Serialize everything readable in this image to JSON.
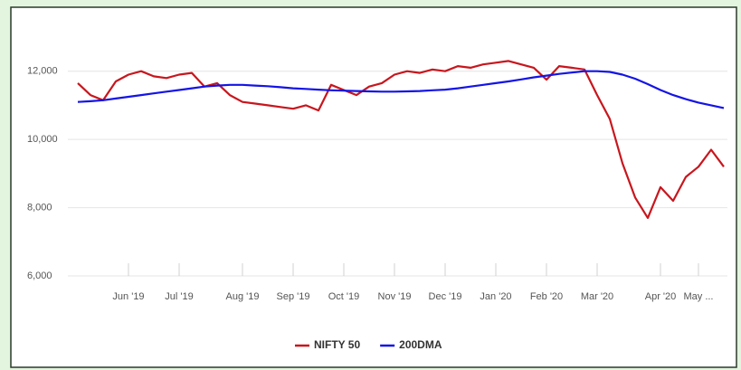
{
  "chart_data": {
    "type": "line",
    "categories": [
      null,
      null,
      null,
      null,
      "Jun '19",
      null,
      null,
      null,
      "Jul '19",
      null,
      null,
      null,
      null,
      "Aug '19",
      null,
      null,
      null,
      "Sep '19",
      null,
      null,
      null,
      "Oct '19",
      null,
      null,
      null,
      "Nov '19",
      null,
      null,
      null,
      "Dec '19",
      null,
      null,
      null,
      "Jan '20",
      null,
      null,
      null,
      "Feb '20",
      null,
      null,
      null,
      "Mar '20",
      null,
      null,
      null,
      null,
      "Apr '20",
      null,
      null,
      "May ...",
      null,
      null
    ],
    "series": [
      {
        "name": "NIFTY 50",
        "color": "#c8161d",
        "values": [
          11650,
          11300,
          11150,
          11700,
          11900,
          12000,
          11850,
          11800,
          11900,
          11950,
          11550,
          11650,
          11300,
          11100,
          11050,
          11000,
          10950,
          10900,
          11000,
          10850,
          11600,
          11450,
          11300,
          11550,
          11650,
          11900,
          12000,
          11950,
          12050,
          12000,
          12150,
          12100,
          12200,
          12250,
          12300,
          12200,
          12100,
          11750,
          12150,
          12100,
          12050,
          11300,
          10600,
          9300,
          8300,
          7700,
          8600,
          8200,
          8900,
          9200,
          9700,
          9200
        ]
      },
      {
        "name": "200DMA",
        "color": "#1414e6",
        "values": [
          11100,
          11120,
          11150,
          11200,
          11250,
          11300,
          11350,
          11400,
          11450,
          11500,
          11550,
          11580,
          11600,
          11600,
          11580,
          11560,
          11530,
          11500,
          11480,
          11460,
          11440,
          11430,
          11420,
          11410,
          11400,
          11400,
          11410,
          11420,
          11440,
          11460,
          11500,
          11550,
          11600,
          11650,
          11700,
          11760,
          11820,
          11870,
          11920,
          11960,
          12000,
          12000,
          11980,
          11900,
          11780,
          11620,
          11450,
          11300,
          11180,
          11080,
          11000,
          10920
        ]
      }
    ],
    "ylim": [
      6000,
      13000
    ],
    "yticks": [
      {
        "value": 6000,
        "label": "6,000"
      },
      {
        "value": 8000,
        "label": "8,000"
      },
      {
        "value": 10000,
        "label": "10,000"
      },
      {
        "value": 12000,
        "label": "12,000"
      }
    ],
    "grid": true,
    "legend": "bottom"
  }
}
